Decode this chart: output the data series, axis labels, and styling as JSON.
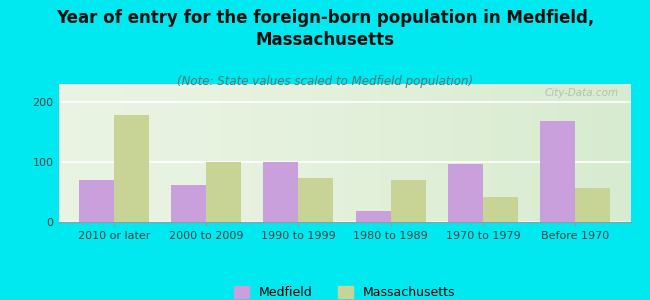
{
  "title": "Year of entry for the foreign-born population in Medfield,\nMassachusetts",
  "subtitle": "(Note: State values scaled to Medfield population)",
  "categories": [
    "2010 or later",
    "2000 to 2009",
    "1990 to 1999",
    "1980 to 1989",
    "1970 to 1979",
    "Before 1970"
  ],
  "medfield_values": [
    70,
    62,
    100,
    18,
    97,
    168
  ],
  "massachusetts_values": [
    178,
    100,
    73,
    70,
    42,
    57
  ],
  "medfield_color": "#c9a0dc",
  "massachusetts_color": "#c8d496",
  "background_color": "#00e8f0",
  "plot_bg": "#e8f2e0",
  "ylim": [
    0,
    230
  ],
  "yticks": [
    0,
    100,
    200
  ],
  "bar_width": 0.38,
  "title_fontsize": 12,
  "subtitle_fontsize": 8.5,
  "tick_fontsize": 8,
  "legend_fontsize": 9,
  "watermark": "City-Data.com"
}
